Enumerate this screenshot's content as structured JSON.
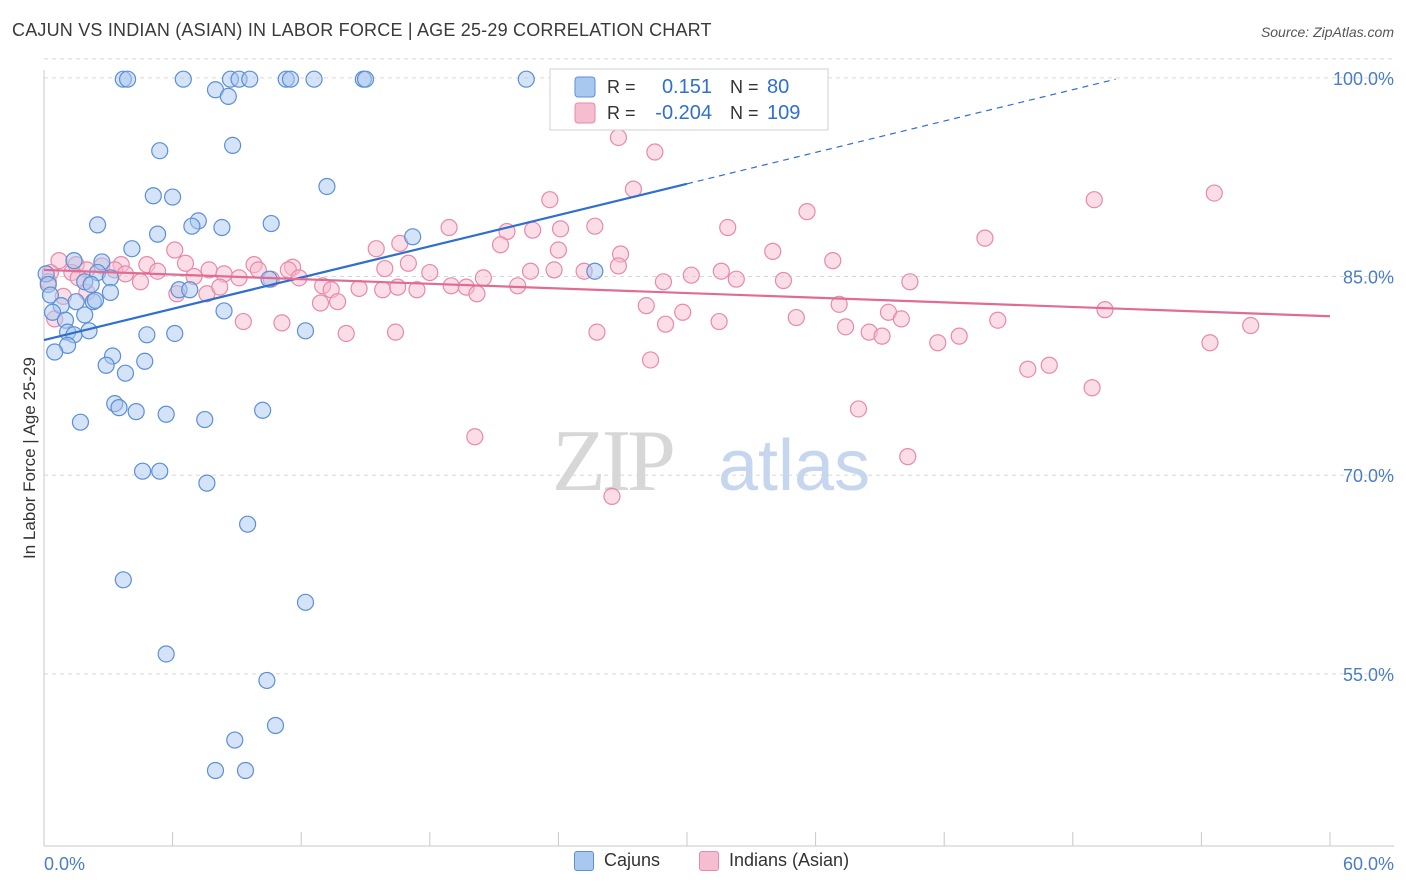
{
  "title": "CAJUN VS INDIAN (ASIAN) IN LABOR FORCE | AGE 25-29 CORRELATION CHART",
  "source": "Source: ZipAtlas.com",
  "watermark": {
    "zip": "ZIP",
    "atlas": "atlas"
  },
  "colors": {
    "blue_fill": "#a9c8f0",
    "blue_stroke": "#5b8fd6",
    "blue_line": "#2f6fd0",
    "pink_fill": "#f6bcd0",
    "pink_stroke": "#e88aa8",
    "pink_line": "#e06c94",
    "axis_label": "#4a7cc7",
    "grid": "#d8d8d8"
  },
  "legend": {
    "rows": [
      {
        "r_label": "R =",
        "r_value": "0.151",
        "n_label": "N =",
        "n_value": "80"
      },
      {
        "r_label": "R =",
        "r_value": "-0.204",
        "n_label": "N =",
        "n_value": "109"
      }
    ],
    "bottom": [
      "Cajuns",
      "Indians (Asian)"
    ]
  },
  "chart_data": {
    "type": "scatter",
    "ylabel": "In Labor Force | Age 25-29",
    "xlim": [
      0,
      60
    ],
    "ylim": [
      42,
      101.5
    ],
    "x_tick_labels": [
      "0.0%",
      "60.0%"
    ],
    "y_ticks": [
      55,
      70,
      85,
      100
    ],
    "y_tick_labels": [
      "55.0%",
      "70.0%",
      "85.0%",
      "100.0%"
    ],
    "grid": "horizontal dashed",
    "legend_position": "top-center",
    "series": [
      {
        "name": "Cajuns",
        "R": 0.151,
        "N": 80,
        "trend": {
          "x0": 0,
          "y0": 80.2,
          "x1": 30,
          "y1": 92.0,
          "dashed_to_x": 50,
          "dashed_to_y": 99.9
        },
        "points": [
          [
            3.7,
            99.9
          ],
          [
            3.9,
            99.9
          ],
          [
            6.5,
            99.9
          ],
          [
            8.7,
            99.9
          ],
          [
            9.1,
            99.9
          ],
          [
            9.6,
            99.9
          ],
          [
            11.3,
            99.9
          ],
          [
            11.5,
            99.9
          ],
          [
            12.6,
            99.9
          ],
          [
            14.9,
            99.9
          ],
          [
            15.0,
            99.9
          ],
          [
            22.5,
            99.9
          ],
          [
            8.0,
            99.1
          ],
          [
            8.6,
            98.6
          ],
          [
            8.8,
            94.9
          ],
          [
            5.4,
            94.5
          ],
          [
            13.2,
            91.8
          ],
          [
            5.1,
            91.1
          ],
          [
            6.0,
            91.0
          ],
          [
            2.5,
            88.9
          ],
          [
            7.2,
            89.2
          ],
          [
            6.9,
            88.8
          ],
          [
            8.3,
            88.7
          ],
          [
            10.6,
            89.0
          ],
          [
            5.3,
            88.2
          ],
          [
            17.2,
            88.0
          ],
          [
            4.1,
            87.1
          ],
          [
            1.4,
            86.2
          ],
          [
            2.7,
            86.1
          ],
          [
            2.5,
            85.3
          ],
          [
            25.7,
            85.4
          ],
          [
            0.1,
            85.2
          ],
          [
            0.2,
            84.4
          ],
          [
            1.9,
            84.6
          ],
          [
            2.2,
            84.4
          ],
          [
            3.1,
            84.9
          ],
          [
            10.5,
            84.8
          ],
          [
            0.3,
            83.6
          ],
          [
            1.5,
            83.1
          ],
          [
            2.3,
            83.1
          ],
          [
            2.4,
            83.2
          ],
          [
            3.1,
            83.8
          ],
          [
            6.3,
            84.0
          ],
          [
            6.8,
            84.0
          ],
          [
            0.8,
            82.8
          ],
          [
            0.4,
            82.3
          ],
          [
            1.9,
            82.1
          ],
          [
            8.4,
            82.4
          ],
          [
            1.0,
            81.7
          ],
          [
            1.1,
            80.8
          ],
          [
            1.4,
            80.6
          ],
          [
            2.1,
            80.9
          ],
          [
            4.8,
            80.6
          ],
          [
            6.1,
            80.7
          ],
          [
            12.2,
            80.9
          ],
          [
            1.1,
            79.8
          ],
          [
            0.5,
            79.3
          ],
          [
            3.2,
            79.0
          ],
          [
            2.9,
            78.3
          ],
          [
            4.7,
            78.6
          ],
          [
            3.8,
            77.7
          ],
          [
            3.3,
            75.4
          ],
          [
            3.5,
            75.1
          ],
          [
            4.3,
            74.8
          ],
          [
            5.7,
            74.6
          ],
          [
            7.5,
            74.2
          ],
          [
            10.2,
            74.9
          ],
          [
            1.7,
            74.0
          ],
          [
            4.6,
            70.3
          ],
          [
            5.4,
            70.3
          ],
          [
            7.6,
            69.4
          ],
          [
            9.5,
            66.3
          ],
          [
            3.7,
            62.1
          ],
          [
            12.2,
            60.4
          ],
          [
            5.7,
            56.5
          ],
          [
            10.4,
            54.5
          ],
          [
            10.8,
            51.1
          ],
          [
            8.9,
            50.0
          ],
          [
            8.0,
            47.7
          ],
          [
            9.4,
            47.7
          ]
        ]
      },
      {
        "name": "Indians (Asian)",
        "R": -0.204,
        "N": 109,
        "trend": {
          "x0": 0,
          "y0": 85.5,
          "x1": 60,
          "y1": 82.0
        },
        "points": [
          [
            26.8,
            95.5
          ],
          [
            28.5,
            94.4
          ],
          [
            27.5,
            91.6
          ],
          [
            54.6,
            91.3
          ],
          [
            23.6,
            90.8
          ],
          [
            49.0,
            90.8
          ],
          [
            35.6,
            89.9
          ],
          [
            18.9,
            88.7
          ],
          [
            21.6,
            88.4
          ],
          [
            22.8,
            88.5
          ],
          [
            24.1,
            88.6
          ],
          [
            25.7,
            88.8
          ],
          [
            31.9,
            88.7
          ],
          [
            43.9,
            87.9
          ],
          [
            15.5,
            87.1
          ],
          [
            21.3,
            87.4
          ],
          [
            16.6,
            87.5
          ],
          [
            24.0,
            87.0
          ],
          [
            26.9,
            86.7
          ],
          [
            6.1,
            87.0
          ],
          [
            34.0,
            86.9
          ],
          [
            36.8,
            86.2
          ],
          [
            0.7,
            86.2
          ],
          [
            1.5,
            85.9
          ],
          [
            2.7,
            85.8
          ],
          [
            3.6,
            85.9
          ],
          [
            4.8,
            85.9
          ],
          [
            6.6,
            86.0
          ],
          [
            9.8,
            85.9
          ],
          [
            11.6,
            85.7
          ],
          [
            17.0,
            86.0
          ],
          [
            26.8,
            85.8
          ],
          [
            0.3,
            85.3
          ],
          [
            1.3,
            85.3
          ],
          [
            2.0,
            85.5
          ],
          [
            3.3,
            85.5
          ],
          [
            5.3,
            85.4
          ],
          [
            7.7,
            85.5
          ],
          [
            8.4,
            85.2
          ],
          [
            10.0,
            85.5
          ],
          [
            11.4,
            85.5
          ],
          [
            15.9,
            85.6
          ],
          [
            18.0,
            85.3
          ],
          [
            22.7,
            85.4
          ],
          [
            23.8,
            85.5
          ],
          [
            25.2,
            85.4
          ],
          [
            30.2,
            85.1
          ],
          [
            31.6,
            85.4
          ],
          [
            0.2,
            84.6
          ],
          [
            1.6,
            84.9
          ],
          [
            3.8,
            85.2
          ],
          [
            4.5,
            84.6
          ],
          [
            7.0,
            85.0
          ],
          [
            9.1,
            84.9
          ],
          [
            10.6,
            84.8
          ],
          [
            11.9,
            84.9
          ],
          [
            13.0,
            84.3
          ],
          [
            13.4,
            84.0
          ],
          [
            14.7,
            84.1
          ],
          [
            15.8,
            84.0
          ],
          [
            16.5,
            84.2
          ],
          [
            17.4,
            84.0
          ],
          [
            19.0,
            84.3
          ],
          [
            19.7,
            84.2
          ],
          [
            20.5,
            84.9
          ],
          [
            22.1,
            84.3
          ],
          [
            28.9,
            84.6
          ],
          [
            32.3,
            84.8
          ],
          [
            34.5,
            84.7
          ],
          [
            40.4,
            84.6
          ],
          [
            0.9,
            83.5
          ],
          [
            2.0,
            83.8
          ],
          [
            6.2,
            83.7
          ],
          [
            7.6,
            83.7
          ],
          [
            8.2,
            84.2
          ],
          [
            12.9,
            83.0
          ],
          [
            13.7,
            83.1
          ],
          [
            20.2,
            83.7
          ],
          [
            28.1,
            82.8
          ],
          [
            29.8,
            82.3
          ],
          [
            37.1,
            82.9
          ],
          [
            39.4,
            82.3
          ],
          [
            49.5,
            82.5
          ],
          [
            0.5,
            81.8
          ],
          [
            9.3,
            81.6
          ],
          [
            11.1,
            81.5
          ],
          [
            29.0,
            81.4
          ],
          [
            31.5,
            81.6
          ],
          [
            35.1,
            81.9
          ],
          [
            40.0,
            81.8
          ],
          [
            44.5,
            81.7
          ],
          [
            56.3,
            81.3
          ],
          [
            14.1,
            80.7
          ],
          [
            16.4,
            80.8
          ],
          [
            25.8,
            80.8
          ],
          [
            37.4,
            81.2
          ],
          [
            38.5,
            80.8
          ],
          [
            39.1,
            80.5
          ],
          [
            42.7,
            80.5
          ],
          [
            41.7,
            80.0
          ],
          [
            54.4,
            80.0
          ],
          [
            28.3,
            78.7
          ],
          [
            46.9,
            78.3
          ],
          [
            45.9,
            78.0
          ],
          [
            48.9,
            76.6
          ],
          [
            38.0,
            75.0
          ],
          [
            20.1,
            72.9
          ],
          [
            40.3,
            71.4
          ],
          [
            26.5,
            68.4
          ]
        ]
      }
    ]
  }
}
